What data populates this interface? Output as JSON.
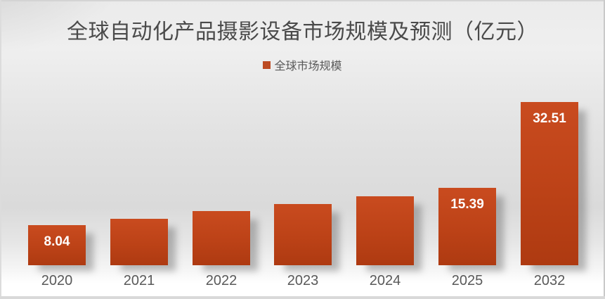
{
  "chart": {
    "title": "全球自动化产品摄影设备市场规模及预测（亿元）",
    "legend": {
      "label": "全球市场规模",
      "marker_color": "#bc4a22"
    }
  },
  "chart_data": {
    "type": "bar",
    "title": "全球自动化产品摄影设备市场规模及预测（亿元）",
    "series_name": "全球市场规模",
    "categories": [
      "2020",
      "2021",
      "2022",
      "2023",
      "2024",
      "2025",
      "2032"
    ],
    "values": [
      8.04,
      9.2,
      10.8,
      12.2,
      13.7,
      15.39,
      32.51
    ],
    "data_labels": [
      "8.04",
      "",
      "",
      "",
      "",
      "15.39",
      "32.51"
    ],
    "xlabel": "",
    "ylabel": "",
    "ylim": [
      0,
      34
    ],
    "grid": false,
    "legend_position": "top-center",
    "bar_color_top": "#c94b1f",
    "bar_color_bottom": "#ae3a11",
    "data_label_color": "#ffffff",
    "tick_label_color": "#595959"
  }
}
